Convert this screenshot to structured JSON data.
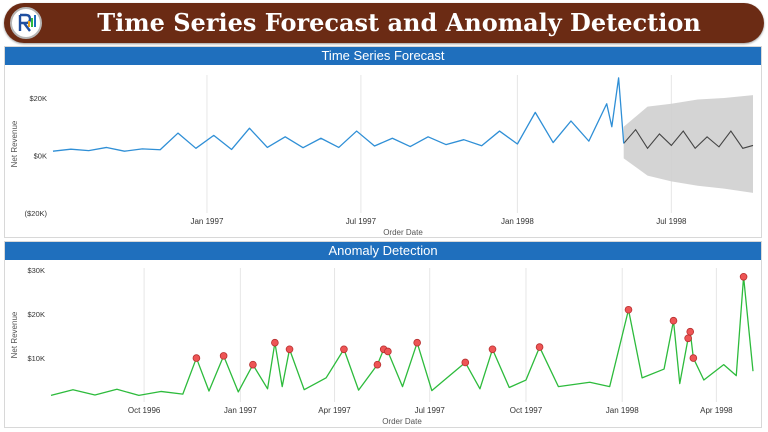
{
  "header": {
    "title": "Time Series Forecast and Anomaly Detection"
  },
  "colors": {
    "header_bg": "#6b2b14",
    "title_bar": "#1f6fbd",
    "forecast_line": "#2f8fd6",
    "forecast_pred": "#444444",
    "confidence_band": "#cfcfcf",
    "anomaly_line": "#2dbb3c",
    "anomaly_marker": "#ee5555",
    "grid": "#e6e6e6"
  },
  "chart_data": [
    {
      "type": "line",
      "title": "Time Series Forecast",
      "xlabel": "Order Date",
      "ylabel": "Net Revenue",
      "yticks": [
        {
          "value": 20000,
          "label": "$20K"
        },
        {
          "value": 0,
          "label": "$0K"
        },
        {
          "value": -20000,
          "label": "($20K)"
        }
      ],
      "ylim": [
        -20000,
        28000
      ],
      "xlim": [
        "1996-07-04",
        "1998-10-05"
      ],
      "xticks": [
        {
          "date": "1997-01-01",
          "label": "Jan 1997"
        },
        {
          "date": "1997-07-01",
          "label": "Jul 1997"
        },
        {
          "date": "1998-01-01",
          "label": "Jan 1998"
        },
        {
          "date": "1998-07-01",
          "label": "Jul 1998"
        }
      ],
      "grid": true,
      "series": [
        {
          "kind": "actual",
          "points": [
            [
              "1996-07-04",
              1500
            ],
            [
              "1996-07-25",
              2200
            ],
            [
              "1996-08-15",
              1700
            ],
            [
              "1996-09-05",
              2800
            ],
            [
              "1996-09-26",
              1500
            ],
            [
              "1996-10-17",
              2300
            ],
            [
              "1996-11-07",
              2000
            ],
            [
              "1996-11-28",
              7800
            ],
            [
              "1996-12-19",
              2500
            ],
            [
              "1997-01-09",
              7000
            ],
            [
              "1997-01-30",
              2100
            ],
            [
              "1997-02-20",
              9500
            ],
            [
              "1997-03-13",
              2800
            ],
            [
              "1997-04-03",
              6500
            ],
            [
              "1997-04-24",
              2700
            ],
            [
              "1997-05-15",
              6000
            ],
            [
              "1997-06-05",
              2800
            ],
            [
              "1997-06-26",
              8500
            ],
            [
              "1997-07-17",
              3300
            ],
            [
              "1997-08-07",
              6000
            ],
            [
              "1997-08-28",
              3100
            ],
            [
              "1997-09-18",
              6500
            ],
            [
              "1997-10-09",
              3800
            ],
            [
              "1997-10-30",
              5500
            ],
            [
              "1997-11-20",
              3400
            ],
            [
              "1997-12-11",
              8500
            ],
            [
              "1998-01-01",
              4000
            ],
            [
              "1998-01-22",
              15000
            ],
            [
              "1998-02-12",
              4500
            ],
            [
              "1998-03-05",
              12000
            ],
            [
              "1998-03-26",
              5000
            ],
            [
              "1998-04-16",
              18000
            ],
            [
              "1998-04-22",
              10000
            ],
            [
              "1998-04-30",
              27000
            ],
            [
              "1998-05-06",
              4200
            ]
          ]
        },
        {
          "kind": "forecast",
          "points": [
            [
              "1998-05-06",
              4200
            ],
            [
              "1998-05-20",
              9000
            ],
            [
              "1998-06-03",
              2500
            ],
            [
              "1998-06-17",
              7500
            ],
            [
              "1998-07-01",
              3500
            ],
            [
              "1998-07-15",
              8500
            ],
            [
              "1998-07-29",
              2500
            ],
            [
              "1998-08-12",
              6500
            ],
            [
              "1998-08-26",
              3000
            ],
            [
              "1998-09-09",
              8500
            ],
            [
              "1998-09-23",
              2500
            ],
            [
              "1998-10-05",
              3500
            ]
          ],
          "band_upper": [
            [
              "1998-05-06",
              10000
            ],
            [
              "1998-06-03",
              17000
            ],
            [
              "1998-07-01",
              18000
            ],
            [
              "1998-08-01",
              19500
            ],
            [
              "1998-09-01",
              20000
            ],
            [
              "1998-10-05",
              21000
            ]
          ],
          "band_lower": [
            [
              "1998-05-06",
              -1000
            ],
            [
              "1998-06-03",
              -7000
            ],
            [
              "1998-07-01",
              -9000
            ],
            [
              "1998-08-01",
              -10500
            ],
            [
              "1998-09-01",
              -11500
            ],
            [
              "1998-10-05",
              -13000
            ]
          ]
        }
      ]
    },
    {
      "type": "line",
      "title": "Anomaly Detection",
      "xlabel": "Order Date",
      "ylabel": "Net Revenue",
      "yticks": [
        {
          "value": 30000,
          "label": "$30K"
        },
        {
          "value": 20000,
          "label": "$20K"
        },
        {
          "value": 10000,
          "label": "$10K"
        }
      ],
      "ylim": [
        0,
        30500
      ],
      "xlim": [
        "1996-07-04",
        "1998-05-06"
      ],
      "xticks": [
        {
          "date": "1996-10-01",
          "label": "Oct 1996"
        },
        {
          "date": "1997-01-01",
          "label": "Jan 1997"
        },
        {
          "date": "1997-04-01",
          "label": "Apr 1997"
        },
        {
          "date": "1997-07-01",
          "label": "Jul 1997"
        },
        {
          "date": "1997-10-01",
          "label": "Oct 1997"
        },
        {
          "date": "1998-01-01",
          "label": "Jan 1998"
        },
        {
          "date": "1998-04-01",
          "label": "Apr 1998"
        }
      ],
      "grid": true,
      "series": [
        {
          "kind": "actual",
          "points": [
            [
              "1996-07-04",
              1500
            ],
            [
              "1996-07-25",
              2800
            ],
            [
              "1996-08-15",
              1600
            ],
            [
              "1996-09-05",
              2900
            ],
            [
              "1996-09-26",
              1500
            ],
            [
              "1996-10-17",
              2400
            ],
            [
              "1996-11-07",
              1800
            ],
            [
              "1996-11-20",
              10000
            ],
            [
              "1996-12-02",
              2500
            ],
            [
              "1996-12-16",
              10500
            ],
            [
              "1996-12-30",
              2300
            ],
            [
              "1997-01-13",
              8500
            ],
            [
              "1997-01-27",
              3000
            ],
            [
              "1997-02-03",
              13500
            ],
            [
              "1997-02-10",
              3500
            ],
            [
              "1997-02-17",
              12000
            ],
            [
              "1997-03-03",
              2800
            ],
            [
              "1997-03-24",
              5500
            ],
            [
              "1997-04-10",
              12000
            ],
            [
              "1997-04-24",
              2700
            ],
            [
              "1997-05-12",
              8500
            ],
            [
              "1997-05-18",
              12000
            ],
            [
              "1997-05-22",
              11500
            ],
            [
              "1997-06-05",
              3500
            ],
            [
              "1997-06-19",
              13500
            ],
            [
              "1997-07-03",
              2600
            ],
            [
              "1997-08-04",
              9000
            ],
            [
              "1997-08-18",
              3000
            ],
            [
              "1997-08-30",
              12000
            ],
            [
              "1997-09-15",
              3300
            ],
            [
              "1997-10-01",
              5000
            ],
            [
              "1997-10-14",
              12500
            ],
            [
              "1997-11-01",
              3500
            ],
            [
              "1997-12-01",
              4500
            ],
            [
              "1997-12-20",
              3500
            ],
            [
              "1998-01-07",
              21000
            ],
            [
              "1998-01-20",
              5500
            ],
            [
              "1998-02-10",
              7500
            ],
            [
              "1998-02-19",
              18500
            ],
            [
              "1998-02-25",
              4200
            ],
            [
              "1998-03-05",
              14500
            ],
            [
              "1998-03-07",
              16000
            ],
            [
              "1998-03-10",
              10000
            ],
            [
              "1998-03-20",
              5000
            ],
            [
              "1998-04-08",
              8500
            ],
            [
              "1998-04-20",
              6000
            ],
            [
              "1998-04-27",
              28500
            ],
            [
              "1998-05-06",
              7000
            ]
          ]
        },
        {
          "kind": "anomalies",
          "points": [
            [
              "1996-11-20",
              10000
            ],
            [
              "1996-12-16",
              10500
            ],
            [
              "1997-01-13",
              8500
            ],
            [
              "1997-02-03",
              13500
            ],
            [
              "1997-02-17",
              12000
            ],
            [
              "1997-04-10",
              12000
            ],
            [
              "1997-05-12",
              8500
            ],
            [
              "1997-05-18",
              12000
            ],
            [
              "1997-05-22",
              11500
            ],
            [
              "1997-06-19",
              13500
            ],
            [
              "1997-08-04",
              9000
            ],
            [
              "1997-08-30",
              12000
            ],
            [
              "1997-10-14",
              12500
            ],
            [
              "1998-01-07",
              21000
            ],
            [
              "1998-02-19",
              18500
            ],
            [
              "1998-03-05",
              14500
            ],
            [
              "1998-03-07",
              16000
            ],
            [
              "1998-03-10",
              10000
            ],
            [
              "1998-04-27",
              28500
            ]
          ]
        }
      ]
    }
  ]
}
